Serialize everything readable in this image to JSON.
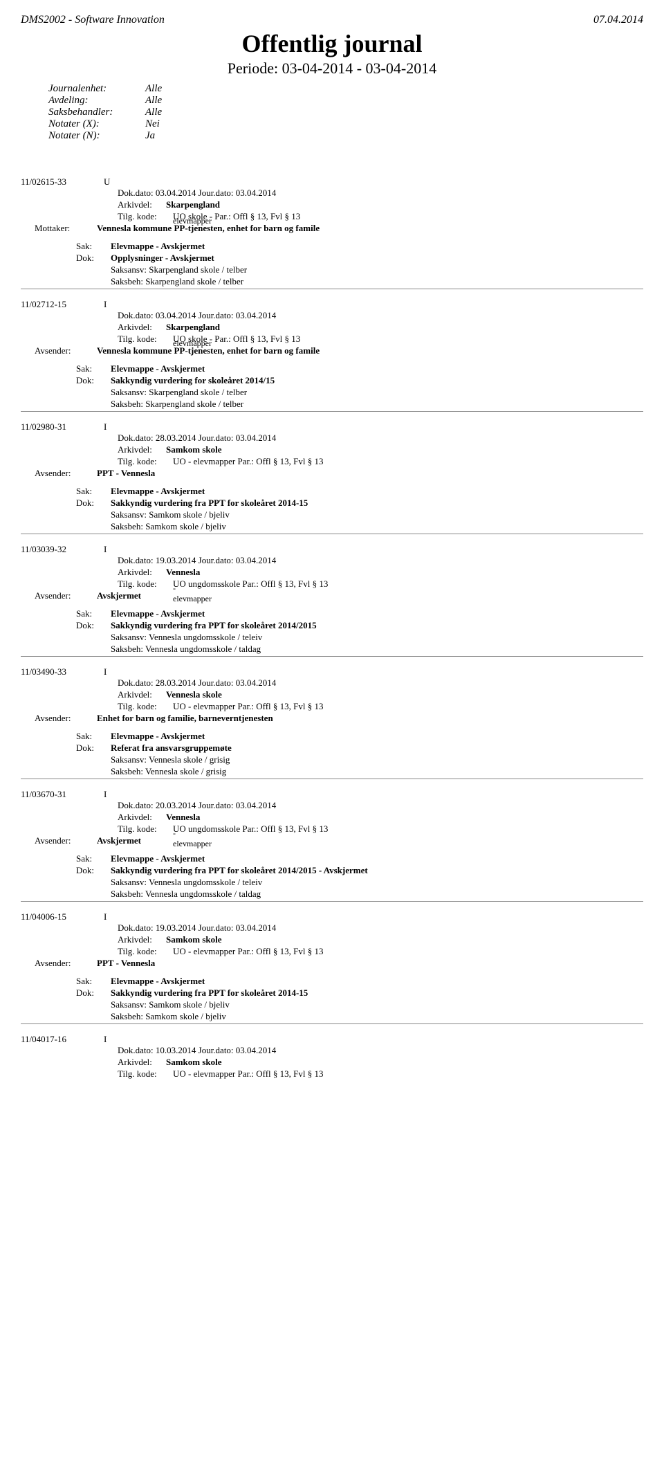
{
  "header": {
    "system": "DMS2002 - Software Innovation",
    "date": "07.04.2014",
    "title": "Offentlig journal",
    "period": "Periode: 03-04-2014 - 03-04-2014",
    "meta": {
      "journalenhet_label": "Journalenhet:",
      "journalenhet": "Alle",
      "avdeling_label": "Avdeling:",
      "avdeling": "Alle",
      "saksbehandler_label": "Saksbehandler:",
      "saksbehandler": "Alle",
      "notater_x_label": "Notater (X):",
      "notater_x": "Nei",
      "notater_n_label": "Notater (N):",
      "notater_n": "Ja"
    }
  },
  "labels": {
    "arkivdel": "Arkivdel:",
    "tilg": "Tilg. kode:",
    "mottaker": "Mottaker:",
    "avsender": "Avsender:",
    "sak": "Sak:",
    "dok": "Dok:",
    "saksansv": "Saksansv:",
    "saksbeh": "Saksbeh:"
  },
  "entries": [
    {
      "id": "11/02615-33",
      "type": "U",
      "dokdato": "Dok.dato: 03.04.2014 Jour.dato:  03.04.2014",
      "arkivdel": "Skarpengland",
      "tilg": "UO skole - Par.: Offl § 13, Fvl § 13",
      "party_label_key": "mottaker",
      "party_overlap": "elevmapper",
      "party": "Vennesla kommune PP-tjenesten, enhet for barn og famile",
      "sak": "Elevmappe - Avskjermet",
      "dok": "Opplysninger - Avskjermet",
      "saksansv": "Skarpengland skole / telber",
      "saksbeh": "Skarpengland skole / telber"
    },
    {
      "id": "11/02712-15",
      "type": "I",
      "dokdato": "Dok.dato: 03.04.2014 Jour.dato:  03.04.2014",
      "arkivdel": "Skarpengland",
      "tilg": "UO skole - Par.: Offl § 13, Fvl § 13",
      "party_label_key": "avsender",
      "party_overlap": "elevmapper",
      "party": "Vennesla kommune PP-tjenesten, enhet for barn og famile",
      "sak": "Elevmappe - Avskjermet",
      "dok": "Sakkyndig vurdering for skoleåret 2014/15",
      "saksansv": "Skarpengland skole / telber",
      "saksbeh": "Skarpengland skole / telber"
    },
    {
      "id": "11/02980-31",
      "type": "I",
      "dokdato": "Dok.dato: 28.03.2014 Jour.dato:  03.04.2014",
      "arkivdel": "Samkom skole",
      "tilg": "UO - elevmapper Par.: Offl § 13, Fvl § 13",
      "party_label_key": "avsender",
      "party_overlap": "",
      "party": "PPT - Vennesla",
      "sak": "Elevmappe - Avskjermet",
      "dok": "Sakkyndig vurdering fra PPT for skoleåret 2014-15",
      "saksansv": "Samkom skole / bjeliv",
      "saksbeh": "Samkom skole / bjeliv"
    },
    {
      "id": "11/03039-32",
      "type": "I",
      "dokdato": "Dok.dato: 19.03.2014 Jour.dato:  03.04.2014",
      "arkivdel": "Vennesla",
      "tilg": "UO ungdomsskole Par.: Offl § 13, Fvl § 13",
      "party_label_key": "avsender",
      "party_overlap": "- elevmapper",
      "party": "Avskjermet",
      "sak": "Elevmappe - Avskjermet",
      "dok": "Sakkyndig vurdering fra PPT for skoleåret 2014/2015",
      "saksansv": "Vennesla ungdomsskole / teleiv",
      "saksbeh": "Vennesla ungdomsskole / taldag"
    },
    {
      "id": "11/03490-33",
      "type": "I",
      "dokdato": "Dok.dato: 28.03.2014 Jour.dato:  03.04.2014",
      "arkivdel": "Vennesla skole",
      "tilg": "UO - elevmapper Par.: Offl § 13, Fvl § 13",
      "party_label_key": "avsender",
      "party_overlap": "",
      "party": "Enhet for barn og familie, barneverntjenesten",
      "sak": "Elevmappe - Avskjermet",
      "dok": "Referat fra ansvarsgruppemøte",
      "saksansv": "Vennesla skole / grisig",
      "saksbeh": "Vennesla skole / grisig"
    },
    {
      "id": "11/03670-31",
      "type": "I",
      "dokdato": "Dok.dato: 20.03.2014 Jour.dato:  03.04.2014",
      "arkivdel": "Vennesla",
      "tilg": "UO ungdomsskole Par.: Offl § 13, Fvl § 13",
      "party_label_key": "avsender",
      "party_overlap": "- elevmapper",
      "party": "Avskjermet",
      "sak": "Elevmappe - Avskjermet",
      "dok": "Sakkyndig vurdering fra PPT for skoleåret 2014/2015 - Avskjermet",
      "saksansv": "Vennesla ungdomsskole / teleiv",
      "saksbeh": "Vennesla ungdomsskole / taldag"
    },
    {
      "id": "11/04006-15",
      "type": "I",
      "dokdato": "Dok.dato: 19.03.2014 Jour.dato:  03.04.2014",
      "arkivdel": "Samkom skole",
      "tilg": "UO - elevmapper Par.: Offl § 13, Fvl § 13",
      "party_label_key": "avsender",
      "party_overlap": "",
      "party": "PPT - Vennesla",
      "sak": "Elevmappe - Avskjermet",
      "dok": "Sakkyndig vurdering fra PPT for skoleåret 2014-15",
      "saksansv": "Samkom skole / bjeliv",
      "saksbeh": "Samkom skole / bjeliv"
    },
    {
      "id": "11/04017-16",
      "type": "I",
      "dokdato": "Dok.dato: 10.03.2014 Jour.dato:  03.04.2014",
      "arkivdel": "Samkom skole",
      "tilg": "UO - elevmapper Par.: Offl § 13, Fvl § 13",
      "party_label_key": "",
      "party_overlap": "",
      "party": "",
      "sak": "",
      "dok": "",
      "saksansv": "",
      "saksbeh": ""
    }
  ]
}
